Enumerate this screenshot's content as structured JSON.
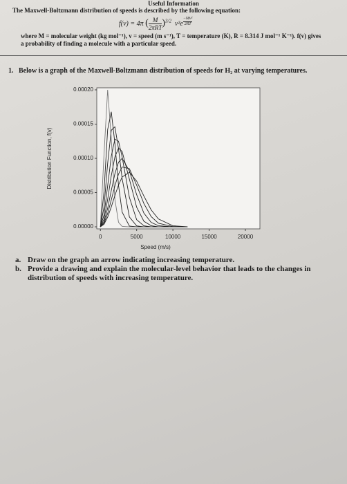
{
  "header": {
    "title": "Useful Information",
    "intro": "The Maxwell-Boltzmann distribution of speeds is described by the following equation:",
    "equation": {
      "lhs": "f(v) = 4π",
      "numerator": "M",
      "denominator": "2πRT",
      "power": "3/2",
      "term": "v²e",
      "exp_numerator": "−Mv²",
      "exp_denominator": "2RT"
    },
    "definitions": "where M = molecular weight (kg mol⁻¹), v = speed (m s⁻¹), T = temperature (K), R = 8.314 J mol⁻¹ K⁻¹). f(v) gives a probability of finding a molecule with a particular speed."
  },
  "question": {
    "number": "1.",
    "text": "Below is a graph of the Maxwell-Boltzmann distribution of speeds for H₂ at varying temperatures.",
    "parts": [
      {
        "letter": "a.",
        "text": "Draw on the graph an arrow indicating increasing temperature."
      },
      {
        "letter": "b.",
        "text": "Provide a drawing and explain the molecular-level behavior that leads to the changes in distribution of speeds with increasing temperature."
      }
    ]
  },
  "chart_data": {
    "type": "line",
    "xlabel": "Speed (m/s)",
    "ylabel": "Distribution Function, f(v)",
    "x": [
      0,
      500,
      1000,
      1500,
      2000,
      2500,
      3000,
      4000,
      5000,
      6000,
      7000,
      8000,
      10000,
      12000
    ],
    "series": [
      {
        "color": "#777777",
        "values": [
          0,
          0.000106,
          0.0002,
          0.000129,
          4e-05,
          6.6e-06,
          6e-07,
          0,
          0,
          0,
          0,
          0,
          0,
          0
        ]
      },
      {
        "color": "#222222",
        "values": [
          0,
          5.19e-05,
          0.000142,
          0.000168,
          0.000122,
          6.07e-05,
          2.15e-05,
          1.1e-06,
          0,
          0,
          0,
          0,
          0,
          0
        ]
      },
      {
        "color": "#222222",
        "values": [
          0,
          2.92e-05,
          9.25e-05,
          0.000141,
          0.000146,
          0.000114,
          7.04e-05,
          1.44e-05,
          1.4e-06,
          0,
          0,
          0,
          0,
          0
        ]
      },
      {
        "color": "#222222",
        "values": [
          0,
          1.73e-05,
          5.95e-05,
          0.000103,
          0.000128,
          0.000125,
          0.000102,
          4.29e-05,
          1.04e-05,
          1.5e-06,
          0,
          0,
          0,
          0
        ]
      },
      {
        "color": "#222222",
        "values": [
          0,
          1.11e-05,
          3.99e-05,
          7.46e-05,
          0.000102,
          0.000115,
          0.00011,
          6.94e-05,
          2.86e-05,
          8.1e-06,
          1.6e-06,
          0,
          0,
          0
        ]
      },
      {
        "color": "#222222",
        "values": [
          0,
          7.4e-06,
          2.7e-05,
          5.29e-05,
          7.75e-05,
          9.43e-05,
          0.0001,
          8.17e-05,
          4.69e-05,
          1.99e-05,
          6.4e-06,
          1.6e-06,
          0,
          0
        ]
      },
      {
        "color": "#222222",
        "values": [
          0,
          5.2e-06,
          1.94e-05,
          3.92e-05,
          5.99e-05,
          7.7e-05,
          8.74e-05,
          8.48e-05,
          6.08e-05,
          3.39e-05,
          1.49e-05,
          5.3e-06,
          4e-07,
          0
        ]
      },
      {
        "color": "#222222",
        "values": [
          0,
          3.7e-06,
          1.41e-05,
          2.9e-05,
          4.57e-05,
          6.1e-05,
          7.27e-05,
          7.96e-05,
          6.67e-05,
          4.49e-05,
          2.48e-05,
          1.15e-05,
          1.5e-06,
          1e-07
        ]
      }
    ],
    "xlim": [
      -500,
      22000
    ],
    "ylim": [
      -3e-06,
      0.000203
    ],
    "xticks": [
      0,
      5000,
      10000,
      15000,
      20000
    ],
    "yticks": [
      {
        "value": 0,
        "label": "0.00000"
      },
      {
        "value": 5e-05,
        "label": "0.00005"
      },
      {
        "value": 0.0001,
        "label": "0.00010"
      },
      {
        "value": 0.00015,
        "label": "0.00015"
      },
      {
        "value": 0.0002,
        "label": "0.00020"
      }
    ]
  }
}
